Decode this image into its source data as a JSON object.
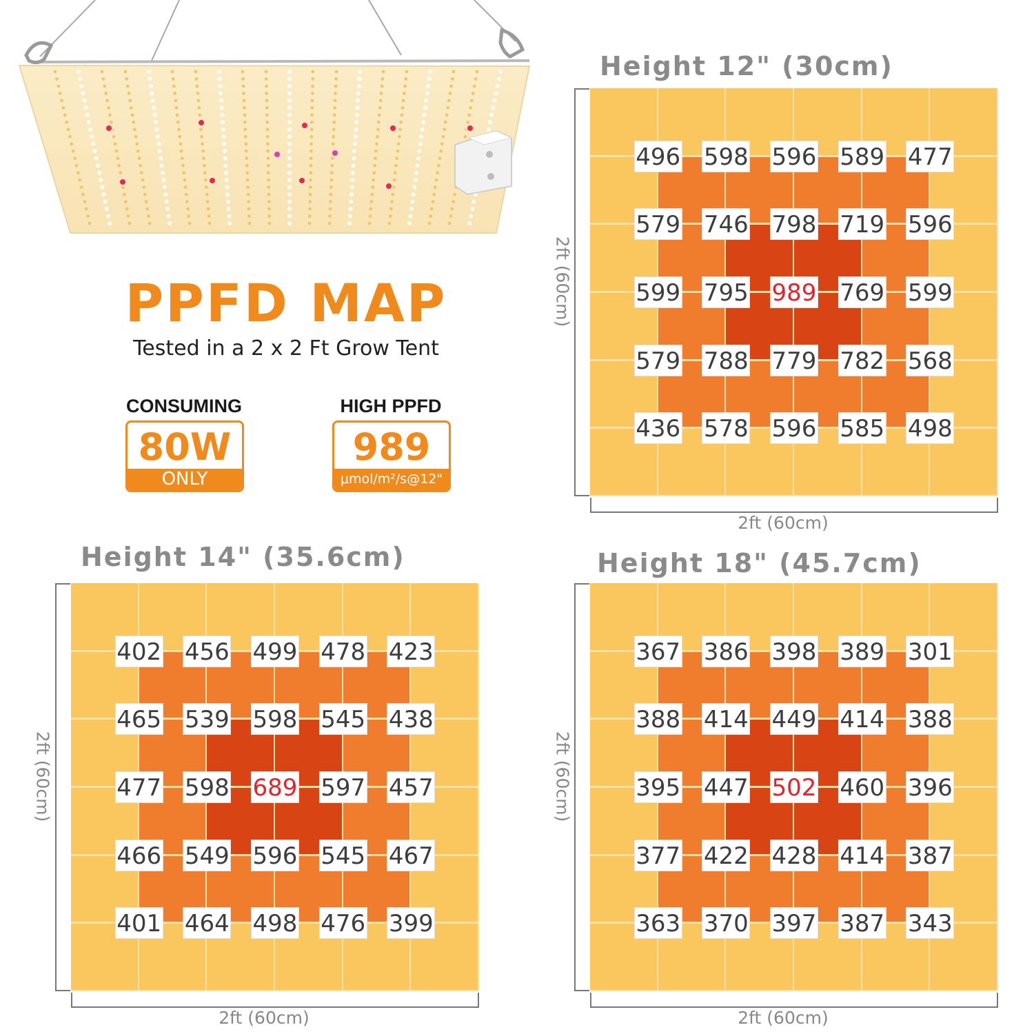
{
  "header": {
    "title": "PPFD MAP",
    "subtitle": "Tested in a 2 x 2 Ft Grow Tent"
  },
  "badges": {
    "consuming": {
      "caption": "CONSUMING",
      "value": "80W",
      "footer": "ONLY"
    },
    "high_ppfd": {
      "caption": "HIGH PPFD",
      "value": "989",
      "footer": "μmol/m²/s@12\""
    }
  },
  "colors": {
    "accent": "#f08a1c",
    "outer_zone": "#fac65e",
    "mid_zone": "#f07d2e",
    "center_zone": "#d94414",
    "peak_text": "#e8202a",
    "gridline": "#fbe0a8"
  },
  "zones": [
    [
      "outer",
      "outer",
      "outer",
      "outer",
      "outer",
      "outer"
    ],
    [
      "outer",
      "mid",
      "mid",
      "mid",
      "mid",
      "outer"
    ],
    [
      "outer",
      "mid",
      "center",
      "center",
      "mid",
      "outer"
    ],
    [
      "outer",
      "mid",
      "center",
      "center",
      "mid",
      "outer"
    ],
    [
      "outer",
      "mid",
      "mid",
      "mid",
      "mid",
      "outer"
    ],
    [
      "outer",
      "outer",
      "outer",
      "outer",
      "outer",
      "outer"
    ]
  ],
  "chart_data": [
    {
      "type": "heatmap",
      "title": "Height 12\" (30cm)",
      "xlabel": "2ft (60cm)",
      "ylabel": "2ft (60cm)",
      "unit": "μmol/m²/s",
      "peak": 989,
      "values": [
        [
          496,
          598,
          596,
          589,
          477
        ],
        [
          579,
          746,
          798,
          719,
          596
        ],
        [
          599,
          795,
          989,
          769,
          599
        ],
        [
          579,
          788,
          779,
          782,
          568
        ],
        [
          436,
          578,
          596,
          585,
          498
        ]
      ]
    },
    {
      "type": "heatmap",
      "title": "Height 14\" (35.6cm)",
      "xlabel": "2ft (60cm)",
      "ylabel": "2ft (60cm)",
      "unit": "μmol/m²/s",
      "peak": 689,
      "values": [
        [
          402,
          456,
          499,
          478,
          423
        ],
        [
          465,
          539,
          598,
          545,
          438
        ],
        [
          477,
          598,
          689,
          597,
          457
        ],
        [
          466,
          549,
          596,
          545,
          467
        ],
        [
          401,
          464,
          498,
          476,
          399
        ]
      ]
    },
    {
      "type": "heatmap",
      "title": "Height 18\" (45.7cm)",
      "xlabel": "2ft (60cm)",
      "ylabel": "2ft (60cm)",
      "unit": "μmol/m²/s",
      "peak": 502,
      "values": [
        [
          367,
          386,
          398,
          389,
          301
        ],
        [
          388,
          414,
          449,
          414,
          388
        ],
        [
          395,
          447,
          502,
          460,
          396
        ],
        [
          377,
          422,
          428,
          414,
          387
        ],
        [
          363,
          370,
          397,
          387,
          343
        ]
      ]
    }
  ]
}
